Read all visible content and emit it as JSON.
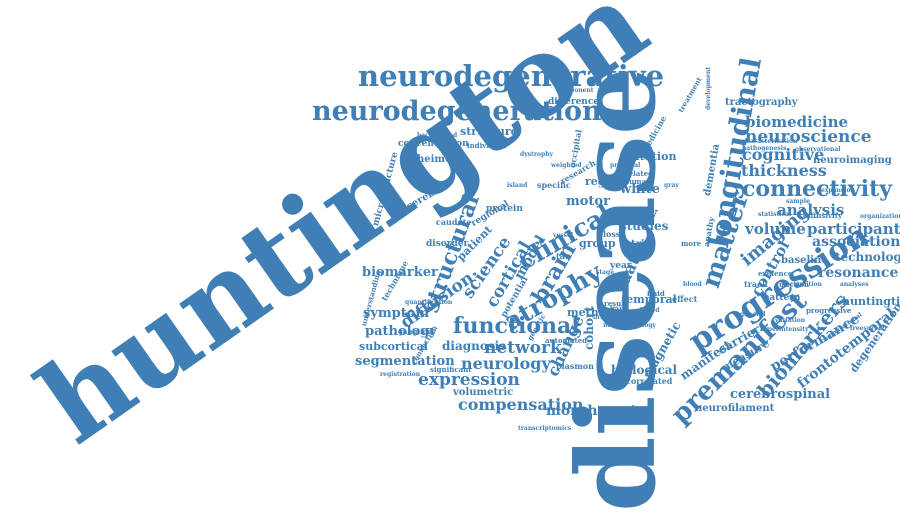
{
  "colors": {
    "word": "#3f7fb6",
    "background": "#ffffff"
  },
  "words": {
    "huntington": "huntington",
    "disease": "disease",
    "neurodegenerative": "neurodegenerative",
    "neurodegeneration": "neurodegeneration",
    "progression": "progression",
    "longitudinal": "longitudinal",
    "premanifest": "premanifest",
    "clinical": "clinical",
    "connectivity": "connectivity",
    "atrophy": "atrophy",
    "functional": "functional",
    "biomarkers": "biomarkers",
    "matter": "matter",
    "brain": "brain",
    "expression": "expression",
    "compensation": "compensation",
    "neurology": "neurology",
    "network": "network",
    "structural": "structural",
    "cortical": "cortical",
    "imaging": "imaging",
    "analysis": "analysis",
    "thickness": "thickness",
    "cognitive": "cognitive",
    "neuroscience": "neuroscience",
    "biomedicine": "biomedicine",
    "volume": "volume",
    "participant": "participant",
    "association": "association",
    "technology": "technology",
    "resonance": "resonance",
    "cerebrospinal": "cerebrospinal",
    "frontotemporal": "frontotemporal",
    "performance": "performance",
    "huntingtin": "huntingtin",
    "degeneration": "degeneration",
    "neurofilament": "neurofilament",
    "morphometry": "morphometry",
    "volumetric": "volumetric",
    "diffusion": "diffusion",
    "pathology": "pathology",
    "biomarker": "biomarker",
    "subcortical": "subcortical",
    "segmentation": "segmentation",
    "symptom": "symptom",
    "diagnosis": "diagnosis",
    "science": "science",
    "model": "model",
    "study": "study",
    "studies": "studies",
    "change": "change",
    "magnetic": "magnetic",
    "manifest": "manifest",
    "carrier": "carrier",
    "measure": "measure",
    "control": "control",
    "data": "data",
    "method": "method",
    "motor": "motor",
    "white": "white",
    "region": "region",
    "trial": "trial",
    "cohort": "cohort",
    "temporal": "temporal",
    "tractography": "tractography",
    "neuroimaging": "neuroimaging",
    "mutation": "mutation",
    "structure": "structure",
    "alzheimer": "alzheimer",
    "concentration": "concentration",
    "difference": "difference",
    "component": "component",
    "biological": "biological",
    "correlated": "correlated",
    "plasmon": "plasmon",
    "year": "year",
    "group": "group",
    "patient": "patient",
    "dementia": "dementia",
    "baseline": "baseline",
    "pattern": "pattern",
    "progressive": "progressive",
    "diffusivity": "diffusivity",
    "evidence": "evidence",
    "function": "function",
    "observational": "observational",
    "genetic": "genetic",
    "protein": "protein",
    "cerebral": "cerebral",
    "caudate": "caudate",
    "regional": "regional",
    "disorder": "disorder",
    "technique": "technique",
    "microstructure": "microstructure",
    "understanding": "understanding",
    "ganglion": "ganglion",
    "registration": "registration",
    "significant": "significant",
    "automated": "automated",
    "human": "human",
    "related": "related",
    "specific": "specific",
    "effect": "effect",
    "result": "result",
    "loss": "loss",
    "track": "track",
    "tau": "tau",
    "treatment": "treatment",
    "medicine": "medicine",
    "occipital": "occipital",
    "research": "research",
    "individual": "individual",
    "background": "background",
    "quantification": "quantification",
    "connection": "connection",
    "development": "development",
    "characterization": "characterization",
    "pathogenesis": "pathogenesis",
    "potential": "potential",
    "vessel": "vessel",
    "computational": "computational",
    "freesurfer": "freesurfer",
    "transcriptomics": "transcriptomics",
    "expansion": "expansion",
    "organization": "organization",
    "statistical": "statistical",
    "hyperintensity": "hyperintensity",
    "neuropathology": "neuropathology",
    "cognition": "cognition",
    "fluid": "fluid",
    "general": "general",
    "stage": "stage",
    "variation": "variation",
    "sample": "sample",
    "based": "based",
    "analyses": "analyses",
    "weighted": "weighted",
    "dystrophy": "dystrophy",
    "island": "island",
    "principal": "principal",
    "level": "level",
    "blood": "blood",
    "apathy": "apathy",
    "more": "more",
    "gray": "gray",
    "first": "first"
  }
}
